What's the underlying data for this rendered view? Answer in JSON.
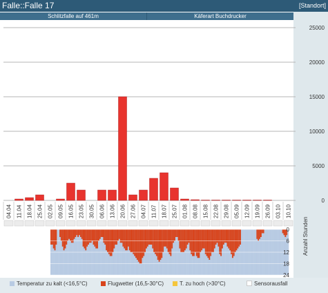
{
  "window": {
    "title": "Falle::Falle 17",
    "location_button": "[Standort]"
  },
  "header": {
    "left_label": "Schlitzfalle auf 461m",
    "right_label": "Käferart Buchdrucker"
  },
  "colors": {
    "bar": "#e8342e",
    "cold": "#b8cbe3",
    "flight": "#d8441c",
    "hot": "#f4c63d",
    "sensor": "#ffffff"
  },
  "chart_data": [
    {
      "type": "bar",
      "categories": [
        "04.04",
        "11.04",
        "18.04",
        "25.04",
        "02.05",
        "09.05",
        "16.05",
        "23.05",
        "30.05",
        "06.06",
        "13.06",
        "20.06",
        "27.06",
        "04.07",
        "11.07",
        "18.07",
        "25.07",
        "01.08",
        "08.08",
        "15.08",
        "22.08",
        "29.08",
        "05.09",
        "12.09",
        "19.09",
        "26.09",
        "03.10",
        "10.10"
      ],
      "values": [
        0,
        200,
        400,
        800,
        0,
        200,
        2500,
        1500,
        0,
        1500,
        1500,
        15000,
        800,
        1500,
        3200,
        4000,
        1800,
        200,
        100,
        50,
        50,
        50,
        50,
        50,
        50,
        50,
        0,
        0
      ],
      "yticks": [
        0,
        5000,
        10000,
        15000,
        20000,
        25000
      ],
      "ylim": [
        0,
        25000
      ]
    },
    {
      "type": "heatmap",
      "ylabel": "Anzahl Stunden",
      "yticks": [
        0,
        6,
        12,
        18,
        24
      ],
      "ylim": [
        0,
        24
      ],
      "legend": [
        "Temperatur zu kalt (<16,5°C)",
        "Flugwetter (16,5-30°C)",
        "T. zu hoch (>30°C)",
        "Sensorausfall"
      ],
      "flight_hours_per_day": [
        8,
        8,
        10,
        11,
        8,
        0,
        0,
        4,
        6,
        9,
        11,
        10,
        8,
        6,
        5,
        6,
        7,
        7,
        5,
        4,
        3,
        4,
        3,
        4,
        5,
        9,
        10,
        11,
        9,
        8,
        7,
        7,
        6,
        8,
        9,
        10,
        10,
        6,
        5,
        4,
        4,
        7,
        8,
        11,
        12,
        13,
        14,
        14,
        12,
        10,
        8,
        8,
        6,
        5,
        7,
        7,
        9,
        10,
        11,
        11,
        9,
        11,
        12,
        12,
        13,
        14,
        15,
        16,
        17,
        18,
        18,
        15,
        14,
        12,
        10,
        9,
        8,
        8,
        8,
        10,
        12,
        13,
        14,
        16,
        17,
        16,
        15,
        12,
        9,
        9,
        10,
        12,
        13,
        14,
        10,
        7,
        6,
        4,
        4,
        6,
        10,
        12,
        12,
        12,
        11,
        10,
        8,
        7,
        11,
        13,
        14,
        14,
        12,
        14,
        15,
        15,
        12,
        11,
        10,
        10,
        13,
        14,
        15,
        16,
        14,
        12,
        12,
        10,
        8,
        7,
        9,
        13,
        14,
        10,
        8,
        7,
        7,
        9,
        10,
        11,
        13,
        15,
        14,
        12,
        11,
        10,
        9,
        8,
        0,
        0,
        0,
        0,
        0,
        0,
        0,
        0,
        0,
        0,
        0,
        0,
        5,
        6,
        5,
        4,
        2,
        2,
        0,
        0,
        0,
        0,
        0,
        0,
        0,
        0,
        0,
        0,
        0,
        0,
        0,
        0,
        2,
        3,
        4,
        3,
        0
      ],
      "hot_hours_per_day": [
        0,
        0,
        0,
        0,
        0,
        0,
        0,
        0,
        0,
        0,
        0,
        0,
        0,
        0,
        0,
        0,
        0,
        0,
        0,
        0,
        0,
        0,
        0,
        0,
        0,
        0,
        0,
        0,
        0,
        0,
        0,
        0,
        0,
        0,
        0,
        0,
        0,
        0,
        0,
        0,
        0,
        0,
        0,
        0,
        0,
        0,
        0,
        0,
        0,
        0,
        0,
        0,
        0,
        0,
        0,
        0,
        0,
        0,
        0,
        0,
        0,
        0,
        0,
        0,
        0,
        0,
        0,
        0,
        0,
        0,
        0,
        0,
        0,
        0,
        0,
        0,
        0,
        0,
        0,
        0,
        0,
        0,
        0,
        0,
        0,
        0,
        0,
        0,
        0,
        0,
        0,
        0,
        0,
        0,
        0,
        0,
        0,
        0,
        0,
        0,
        0,
        0,
        0,
        0,
        0,
        0,
        0,
        0,
        0,
        0,
        0,
        0,
        0,
        0,
        0,
        0,
        0,
        0,
        0,
        0,
        0,
        0,
        0,
        0,
        0,
        0,
        0,
        0,
        0,
        0,
        0,
        0,
        0,
        0,
        0,
        0,
        0,
        0,
        0,
        0,
        0,
        0,
        0,
        0,
        0,
        0,
        0,
        0,
        0,
        0,
        0,
        0,
        0,
        0,
        0,
        0,
        0,
        0,
        0,
        0,
        0,
        0,
        0,
        0,
        0,
        0,
        0,
        0,
        0,
        0,
        0,
        0,
        0,
        0,
        0,
        0,
        0,
        0,
        0,
        0,
        0,
        0,
        0,
        0,
        0,
        0,
        0,
        0
      ]
    }
  ]
}
